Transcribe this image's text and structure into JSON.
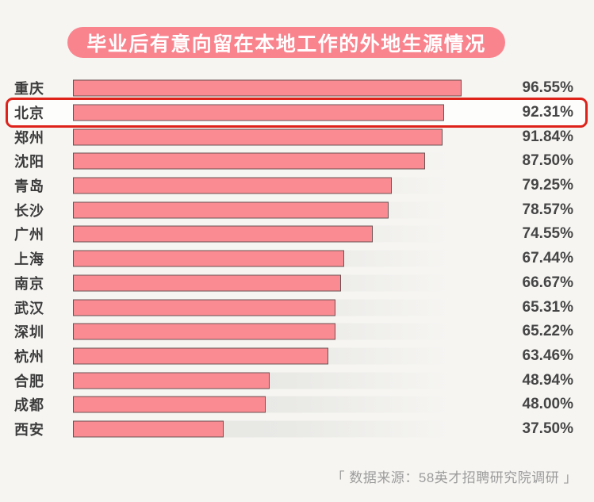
{
  "title": "毕业后有意向留在本地工作的外地生源情况",
  "source": "「 数据来源：58英才招聘研究院调研 」",
  "colors": {
    "background": "#f6f5f2",
    "banner": "#f9848e",
    "bar_fill": "#fa8b92",
    "bar_border": "#6b5253",
    "highlight_border": "#de221a",
    "label_text": "#3c3c3c",
    "value_text": "#454545",
    "source_text": "#9c9c9c"
  },
  "chart_data": {
    "type": "bar",
    "orientation": "horizontal",
    "title": "毕业后有意向留在本地工作的外地生源情况",
    "xlabel": "",
    "ylabel": "",
    "xlim": [
      0,
      100
    ],
    "grid": false,
    "legend": false,
    "highlighted_category": "北京",
    "categories": [
      "重庆",
      "北京",
      "郑州",
      "沈阳",
      "青岛",
      "长沙",
      "广州",
      "上海",
      "南京",
      "武汉",
      "深圳",
      "杭州",
      "合肥",
      "成都",
      "西安"
    ],
    "values": [
      96.55,
      92.31,
      91.84,
      87.5,
      79.25,
      78.57,
      74.55,
      67.44,
      66.67,
      65.31,
      65.22,
      63.46,
      48.94,
      48.0,
      37.5
    ],
    "value_labels": [
      "96.55%",
      "92.31%",
      "91.84%",
      "87.50%",
      "79.25%",
      "78.57%",
      "74.55%",
      "67.44%",
      "66.67%",
      "65.31%",
      "65.22%",
      "63.46%",
      "48.94%",
      "48.00%",
      "37.50%"
    ]
  }
}
